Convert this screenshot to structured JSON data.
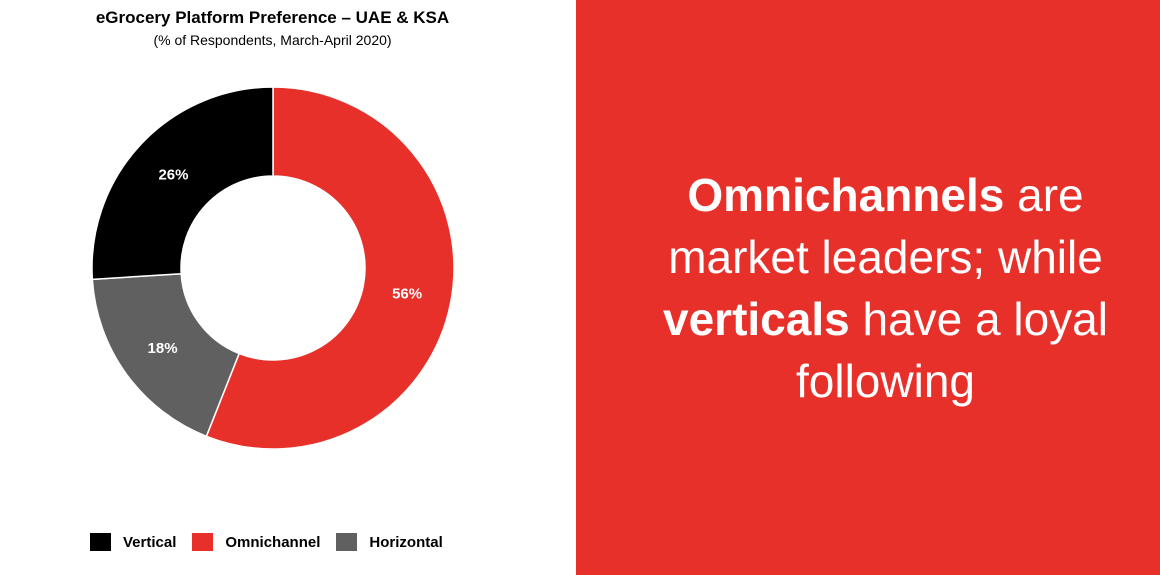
{
  "chart_data": {
    "type": "pie",
    "variant": "donut",
    "title": "eGrocery Platform Preference – UAE & KSA",
    "subtitle": "(% of Respondents, March-April 2020)",
    "categories": [
      "Omnichannel",
      "Horizontal",
      "Vertical"
    ],
    "values": [
      56,
      18,
      26
    ],
    "labels": [
      "56%",
      "18%",
      "26%"
    ],
    "colors": [
      "#E8302A",
      "#606060",
      "#000000"
    ],
    "start": "top, clockwise",
    "legend": {
      "position": "bottom",
      "entries": [
        {
          "label": "Vertical",
          "color": "#000000"
        },
        {
          "label": "Omnichannel",
          "color": "#E8302A"
        },
        {
          "label": "Horizontal",
          "color": "#606060"
        }
      ]
    }
  },
  "panel": {
    "background": "#E8302A",
    "segments": [
      {
        "text": "Omnichannels",
        "bold": true
      },
      {
        "text": " are market leaders; while ",
        "bold": false
      },
      {
        "text": "verticals",
        "bold": true
      },
      {
        "text": " have a loyal following",
        "bold": false
      }
    ]
  }
}
